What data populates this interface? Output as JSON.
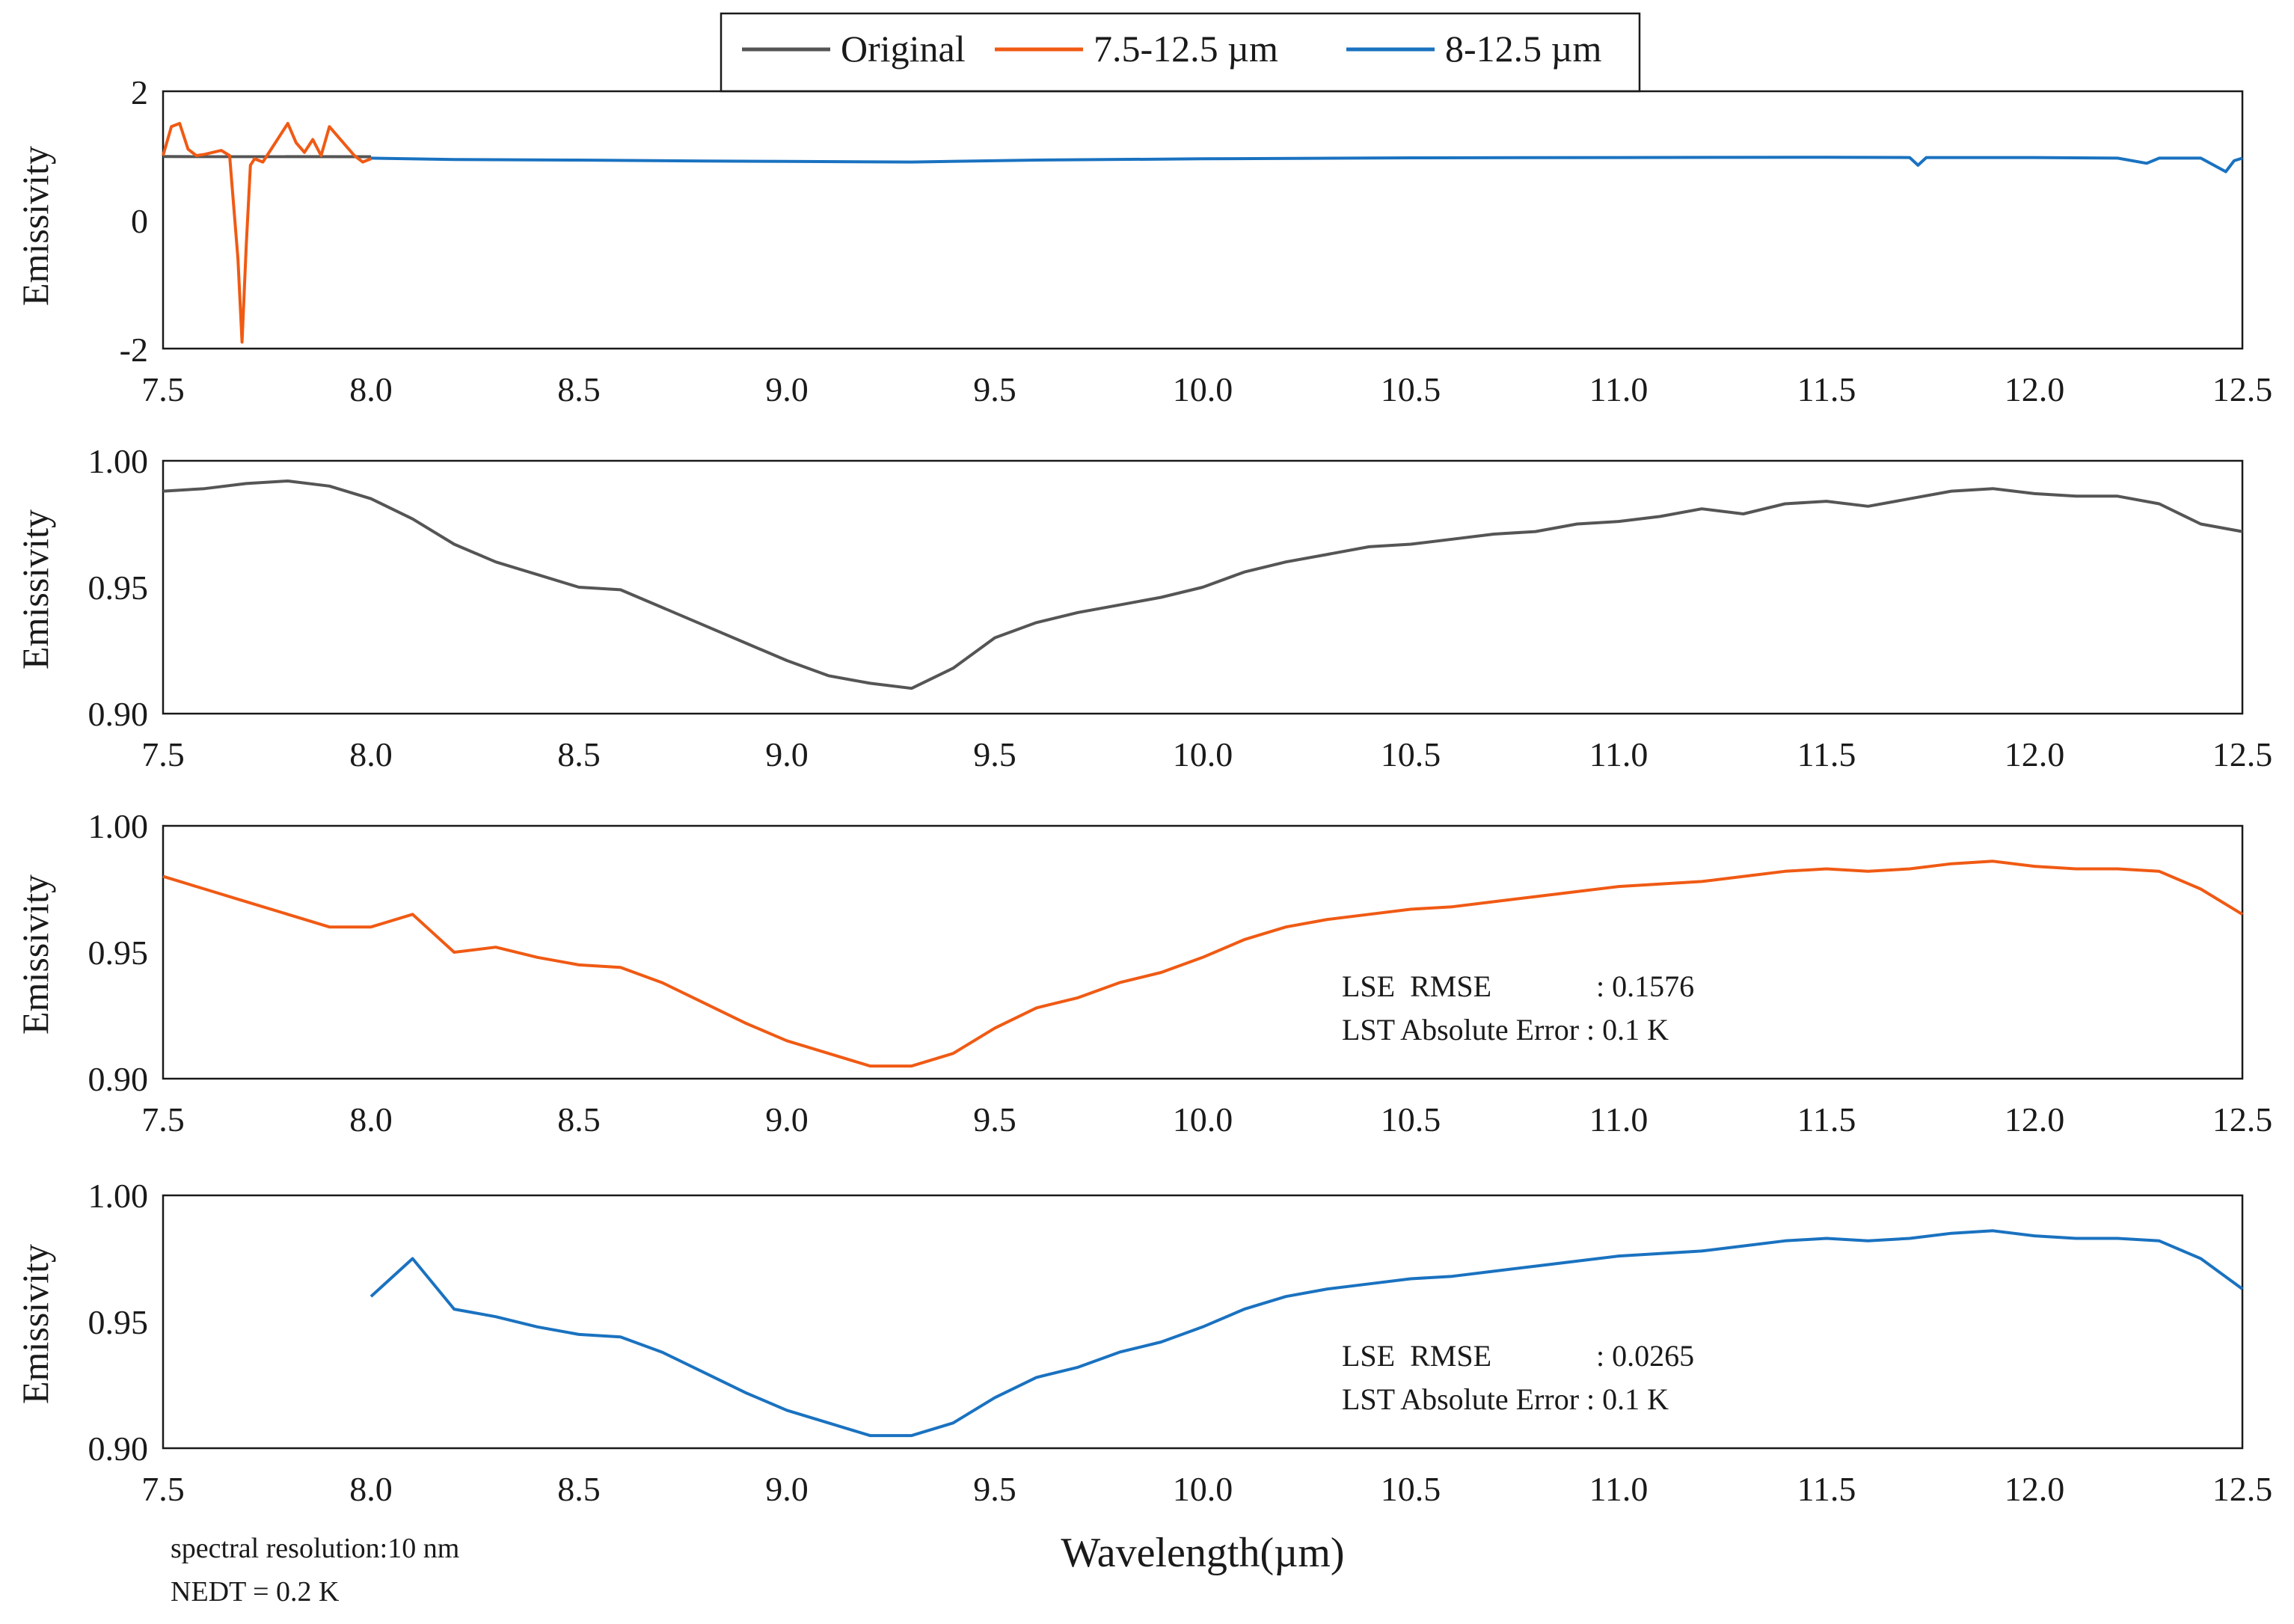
{
  "figure": {
    "legend": [
      {
        "label": "Original",
        "color": "#555555"
      },
      {
        "label": "7.5-12.5 µm",
        "color": "#f05a14"
      },
      {
        "label": "8-12.5 µm",
        "color": "#1a72c0"
      }
    ],
    "xlabel": "Wavelength(µm)",
    "notes": [
      "spectral resolution:10 nm",
      "NEDT = 0.2 K"
    ]
  },
  "colors": {
    "original": "#555555",
    "orange": "#f05a14",
    "blue": "#1a72c0",
    "axis": "#1a1a1a"
  },
  "chart_data": [
    {
      "type": "line",
      "title": "",
      "xlabel": "",
      "ylabel": "Emissivity",
      "xlim": [
        7.5,
        12.5
      ],
      "ylim": [
        -2,
        2
      ],
      "xticks": [
        "7.5",
        "8.0",
        "8.5",
        "9.0",
        "9.5",
        "10.0",
        "10.5",
        "11.0",
        "11.5",
        "12.0",
        "12.5"
      ],
      "yticks": [
        "-2",
        "0",
        "2"
      ],
      "series": [
        {
          "name": "Original",
          "color": "#555555",
          "x": [
            7.5,
            8.0
          ],
          "y": [
            0.985,
            0.982
          ]
        },
        {
          "name": "7.5-12.5 µm",
          "color": "#f05a14",
          "x": [
            7.5,
            7.52,
            7.54,
            7.56,
            7.58,
            7.6,
            7.62,
            7.64,
            7.66,
            7.68,
            7.69,
            7.7,
            7.71,
            7.72,
            7.74,
            7.76,
            7.78,
            7.8,
            7.82,
            7.84,
            7.86,
            7.88,
            7.9,
            7.92,
            7.94,
            7.96,
            7.98,
            8.0
          ],
          "y": [
            1.0,
            1.45,
            1.5,
            1.1,
            1.0,
            1.02,
            1.05,
            1.08,
            1.0,
            -0.6,
            -1.9,
            -0.4,
            0.85,
            0.95,
            0.9,
            1.1,
            1.3,
            1.5,
            1.2,
            1.05,
            1.25,
            1.0,
            1.45,
            1.3,
            1.15,
            1.0,
            0.9,
            0.95
          ]
        },
        {
          "name": "8-12.5 µm",
          "color": "#1a72c0",
          "x": [
            8.0,
            8.2,
            8.5,
            8.8,
            9.0,
            9.3,
            9.6,
            10.0,
            10.5,
            11.0,
            11.5,
            11.7,
            11.72,
            11.74,
            11.8,
            12.0,
            12.2,
            12.27,
            12.3,
            12.4,
            12.46,
            12.48,
            12.5
          ],
          "y": [
            0.96,
            0.94,
            0.93,
            0.915,
            0.91,
            0.9,
            0.93,
            0.95,
            0.965,
            0.97,
            0.975,
            0.97,
            0.85,
            0.97,
            0.97,
            0.97,
            0.96,
            0.88,
            0.96,
            0.96,
            0.75,
            0.92,
            0.96
          ]
        }
      ]
    },
    {
      "type": "line",
      "title": "",
      "xlabel": "",
      "ylabel": "Emissivity",
      "xlim": [
        7.5,
        12.5
      ],
      "ylim": [
        0.9,
        1.0
      ],
      "xticks": [
        "7.5",
        "8.0",
        "8.5",
        "9.0",
        "9.5",
        "10.0",
        "10.5",
        "11.0",
        "11.5",
        "12.0",
        "12.5"
      ],
      "yticks": [
        "0.90",
        "0.95",
        "1.00"
      ],
      "series": [
        {
          "name": "Original",
          "color": "#555555",
          "x": [
            7.5,
            7.6,
            7.7,
            7.8,
            7.9,
            8.0,
            8.1,
            8.2,
            8.3,
            8.4,
            8.5,
            8.6,
            8.7,
            8.8,
            8.9,
            9.0,
            9.1,
            9.2,
            9.3,
            9.4,
            9.5,
            9.6,
            9.7,
            9.8,
            9.9,
            10.0,
            10.1,
            10.2,
            10.3,
            10.4,
            10.5,
            10.6,
            10.7,
            10.8,
            10.9,
            11.0,
            11.1,
            11.2,
            11.3,
            11.4,
            11.5,
            11.6,
            11.7,
            11.8,
            11.9,
            12.0,
            12.1,
            12.2,
            12.3,
            12.4,
            12.5
          ],
          "y": [
            0.988,
            0.989,
            0.991,
            0.992,
            0.99,
            0.985,
            0.977,
            0.967,
            0.96,
            0.955,
            0.95,
            0.949,
            0.942,
            0.935,
            0.928,
            0.921,
            0.915,
            0.912,
            0.91,
            0.918,
            0.93,
            0.936,
            0.94,
            0.943,
            0.946,
            0.95,
            0.956,
            0.96,
            0.963,
            0.966,
            0.967,
            0.969,
            0.971,
            0.972,
            0.975,
            0.976,
            0.978,
            0.981,
            0.979,
            0.983,
            0.984,
            0.982,
            0.985,
            0.988,
            0.989,
            0.987,
            0.986,
            0.986,
            0.983,
            0.975,
            0.972
          ]
        }
      ]
    },
    {
      "type": "line",
      "title": "",
      "xlabel": "",
      "ylabel": "Emissivity",
      "xlim": [
        7.5,
        12.5
      ],
      "ylim": [
        0.9,
        1.0
      ],
      "xticks": [
        "7.5",
        "8.0",
        "8.5",
        "9.0",
        "9.5",
        "10.0",
        "10.5",
        "11.0",
        "11.5",
        "12.0",
        "12.5"
      ],
      "yticks": [
        "0.90",
        "0.95",
        "1.00"
      ],
      "annotations": [
        "LSE  RMSE              : 0.1576",
        "LST Absolute Error : 0.1 K"
      ],
      "series": [
        {
          "name": "7.5-12.5 µm",
          "color": "#f05a14",
          "x": [
            7.5,
            7.6,
            7.7,
            7.8,
            7.9,
            8.0,
            8.1,
            8.2,
            8.3,
            8.4,
            8.5,
            8.6,
            8.7,
            8.8,
            8.9,
            9.0,
            9.1,
            9.2,
            9.3,
            9.4,
            9.5,
            9.6,
            9.7,
            9.8,
            9.9,
            10.0,
            10.1,
            10.2,
            10.3,
            10.4,
            10.5,
            10.6,
            10.7,
            10.8,
            10.9,
            11.0,
            11.1,
            11.2,
            11.3,
            11.4,
            11.5,
            11.6,
            11.7,
            11.8,
            11.9,
            12.0,
            12.1,
            12.2,
            12.3,
            12.4,
            12.5
          ],
          "y": [
            0.98,
            0.975,
            0.97,
            0.965,
            0.96,
            0.96,
            0.965,
            0.95,
            0.952,
            0.948,
            0.945,
            0.944,
            0.938,
            0.93,
            0.922,
            0.915,
            0.91,
            0.905,
            0.905,
            0.91,
            0.92,
            0.928,
            0.932,
            0.938,
            0.942,
            0.948,
            0.955,
            0.96,
            0.963,
            0.965,
            0.967,
            0.968,
            0.97,
            0.972,
            0.974,
            0.976,
            0.977,
            0.978,
            0.98,
            0.982,
            0.983,
            0.982,
            0.983,
            0.985,
            0.986,
            0.984,
            0.983,
            0.983,
            0.982,
            0.975,
            0.965
          ]
        }
      ]
    },
    {
      "type": "line",
      "title": "",
      "xlabel": "Wavelength(µm)",
      "ylabel": "Emissivity",
      "xlim": [
        7.5,
        12.5
      ],
      "ylim": [
        0.9,
        1.0
      ],
      "xticks": [
        "7.5",
        "8.0",
        "8.5",
        "9.0",
        "9.5",
        "10.0",
        "10.5",
        "11.0",
        "11.5",
        "12.0",
        "12.5"
      ],
      "yticks": [
        "0.90",
        "0.95",
        "1.00"
      ],
      "annotations": [
        "LSE  RMSE              : 0.0265",
        "LST Absolute Error : 0.1 K"
      ],
      "series": [
        {
          "name": "8-12.5 µm",
          "color": "#1a72c0",
          "x": [
            8.0,
            8.1,
            8.2,
            8.3,
            8.4,
            8.5,
            8.6,
            8.7,
            8.8,
            8.9,
            9.0,
            9.1,
            9.2,
            9.3,
            9.4,
            9.5,
            9.6,
            9.7,
            9.8,
            9.9,
            10.0,
            10.1,
            10.2,
            10.3,
            10.4,
            10.5,
            10.6,
            10.7,
            10.8,
            10.9,
            11.0,
            11.1,
            11.2,
            11.3,
            11.4,
            11.5,
            11.6,
            11.7,
            11.8,
            11.9,
            12.0,
            12.1,
            12.2,
            12.3,
            12.4,
            12.5
          ],
          "y": [
            0.96,
            0.975,
            0.955,
            0.952,
            0.948,
            0.945,
            0.944,
            0.938,
            0.93,
            0.922,
            0.915,
            0.91,
            0.905,
            0.905,
            0.91,
            0.92,
            0.928,
            0.932,
            0.938,
            0.942,
            0.948,
            0.955,
            0.96,
            0.963,
            0.965,
            0.967,
            0.968,
            0.97,
            0.972,
            0.974,
            0.976,
            0.977,
            0.978,
            0.98,
            0.982,
            0.983,
            0.982,
            0.983,
            0.985,
            0.986,
            0.984,
            0.983,
            0.983,
            0.982,
            0.975,
            0.963
          ]
        }
      ]
    }
  ]
}
